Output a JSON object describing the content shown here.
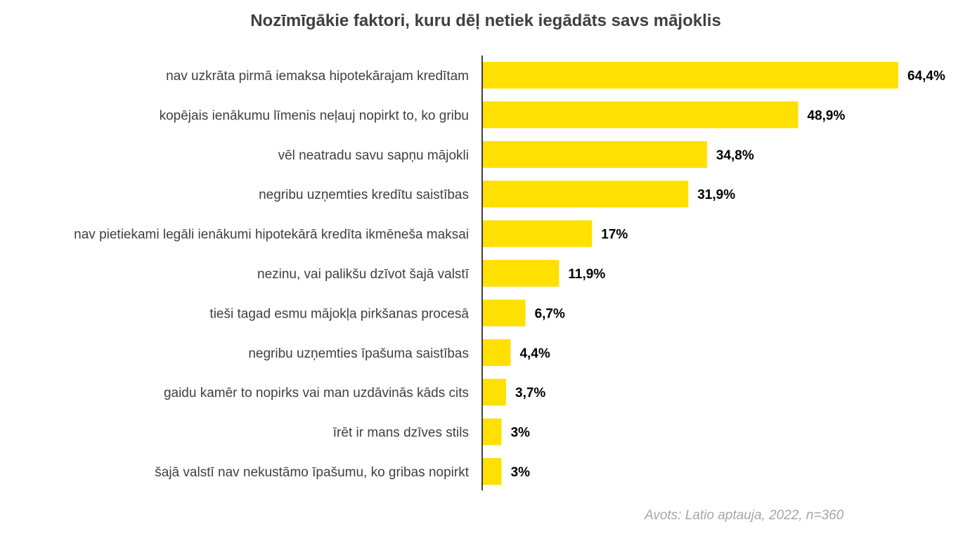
{
  "chart_data": {
    "type": "bar",
    "orientation": "horizontal",
    "title": "Nozīmīgākie faktori, kuru dēļ netiek iegādāts savs mājoklis",
    "categories": [
      "nav uzkrāta pirmā iemaksa hipotekārajam kredītam",
      "kopējais ienākumu līmenis neļauj nopirkt to, ko gribu",
      "vēl neatradu savu sapņu mājokli",
      "negribu uzņemties kredītu saistības",
      "nav pietiekami legāli ienākumi hipotekārā kredīta ikmēneša maksai",
      "nezinu, vai palikšu dzīvot šajā valstī",
      "tieši tagad esmu mājokļa pirkšanas procesā",
      "negribu uzņemties īpašuma saistības",
      "gaidu kamēr to nopirks vai man uzdāvinās kāds cits",
      "īrēt ir mans dzīves stils",
      "šajā valstī nav nekustāmo īpašumu, ko gribas nopirkt"
    ],
    "values": [
      64.4,
      48.9,
      34.8,
      31.9,
      17,
      11.9,
      6.7,
      4.4,
      3.7,
      3,
      3
    ],
    "value_labels": [
      "64,4%",
      "48,9%",
      "34,8%",
      "31,9%",
      "17%",
      "11,9%",
      "6,7%",
      "4,4%",
      "3,7%",
      "3%",
      "3%"
    ],
    "xlim": [
      0,
      70
    ],
    "bar_color": "#FFE000",
    "grid": false,
    "legend": "none"
  },
  "source": "Avots: Latio aptauja, 2022, n=360",
  "colors": {
    "title": "#3f3f3f",
    "axis": "#000000",
    "category_label": "#3f3f3f",
    "value_label": "#000000",
    "source": "#a6a6a6"
  }
}
